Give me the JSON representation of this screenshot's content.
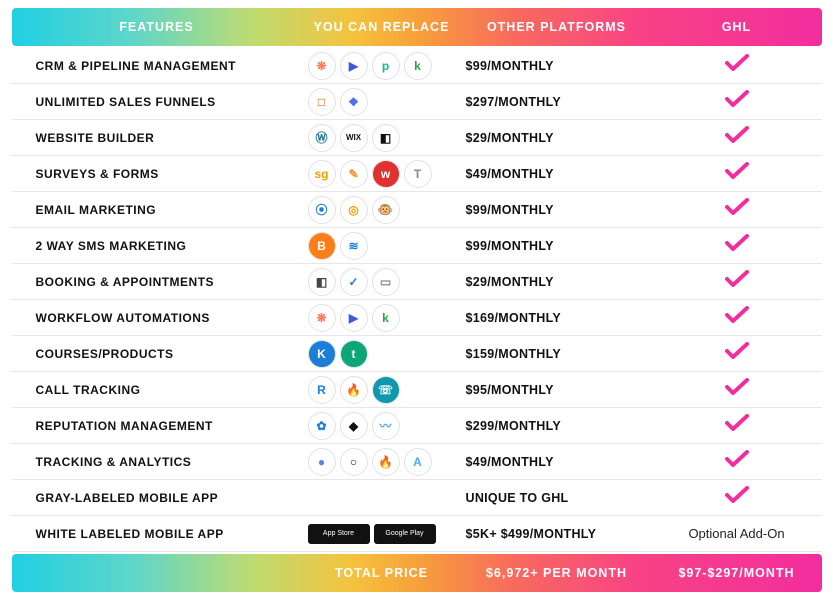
{
  "header": {
    "col1": "FEATURES",
    "col2": "YOU CAN REPLACE",
    "col3": "OTHER PLATFORMS",
    "col4": "GHL"
  },
  "footer": {
    "col1": "",
    "col2": "TOTAL PRICE",
    "col3": "$6,972+ PER MONTH",
    "col4": "$97-$297/MONTH"
  },
  "check_color": "#f22e9e",
  "rows": [
    {
      "feature": "CRM & PIPELINE MANAGEMENT",
      "price": "$99/MONTHLY",
      "ghl": "check",
      "icons": [
        {
          "text": "❋",
          "color": "#ff7a59"
        },
        {
          "text": "▶",
          "color": "#3b5bdb"
        },
        {
          "text": "p",
          "color": "#12b886"
        },
        {
          "text": "k",
          "color": "#2f9e44"
        }
      ]
    },
    {
      "feature": "UNLIMITED SALES FUNNELS",
      "price": "$297/MONTHLY",
      "ghl": "check",
      "icons": [
        {
          "text": "□",
          "color": "#d95000"
        },
        {
          "text": "❖",
          "color": "#4c6ef5"
        }
      ]
    },
    {
      "feature": "WEBSITE BUILDER",
      "price": "$29/MONTHLY",
      "ghl": "check",
      "icons": [
        {
          "text": "Ⓦ",
          "color": "#21759b"
        },
        {
          "text": "WIX",
          "color": "#111",
          "fs": "8"
        },
        {
          "text": "◧",
          "color": "#111"
        }
      ]
    },
    {
      "feature": "SURVEYS & FORMS",
      "price": "$49/MONTHLY",
      "ghl": "check",
      "icons": [
        {
          "text": "sg",
          "color": "#f59f00"
        },
        {
          "text": "✎",
          "color": "#ff922b"
        },
        {
          "text": "w",
          "color": "#fff",
          "bg": "#e03131"
        },
        {
          "text": "T",
          "color": "#888"
        }
      ]
    },
    {
      "feature": "EMAIL MARKETING",
      "price": "$99/MONTHLY",
      "ghl": "check",
      "icons": [
        {
          "text": "⦿",
          "color": "#1c7ed6"
        },
        {
          "text": "◎",
          "color": "#f59f00"
        },
        {
          "text": "🐵",
          "color": "#5c4a2e",
          "fs": "13"
        }
      ]
    },
    {
      "feature": "2 WAY SMS MARKETING",
      "price": "$99/MONTHLY",
      "ghl": "check",
      "icons": [
        {
          "text": "B",
          "color": "#fff",
          "bg": "#fd7e14"
        },
        {
          "text": "≋",
          "color": "#1c7ed6"
        }
      ]
    },
    {
      "feature": "BOOKING & APPOINTMENTS",
      "price": "$29/MONTHLY",
      "ghl": "check",
      "icons": [
        {
          "text": "◧",
          "color": "#444"
        },
        {
          "text": "✓",
          "color": "#1c7ed6"
        },
        {
          "text": "▭",
          "color": "#888"
        }
      ]
    },
    {
      "feature": "WORKFLOW AUTOMATIONS",
      "price": "$169/MONTHLY",
      "ghl": "check",
      "icons": [
        {
          "text": "❋",
          "color": "#ff7a59"
        },
        {
          "text": "▶",
          "color": "#3b5bdb"
        },
        {
          "text": "k",
          "color": "#2f9e44"
        }
      ]
    },
    {
      "feature": "COURSES/PRODUCTS",
      "price": "$159/MONTHLY",
      "ghl": "check",
      "icons": [
        {
          "text": "K",
          "color": "#fff",
          "bg": "#1c7ed6"
        },
        {
          "text": "t",
          "color": "#fff",
          "bg": "#0ca678"
        }
      ]
    },
    {
      "feature": "CALL TRACKING",
      "price": "$95/MONTHLY",
      "ghl": "check",
      "icons": [
        {
          "text": "R",
          "color": "#1c7ed6"
        },
        {
          "text": "🔥",
          "color": "#fd7e14",
          "fs": "12"
        },
        {
          "text": "☏",
          "color": "#fff",
          "bg": "#1098ad"
        }
      ]
    },
    {
      "feature": "REPUTATION MANAGEMENT",
      "price": "$299/MONTHLY",
      "ghl": "check",
      "icons": [
        {
          "text": "✿",
          "color": "#1c7ed6"
        },
        {
          "text": "◆",
          "color": "#111"
        },
        {
          "text": "〰",
          "color": "#4dabf7"
        }
      ]
    },
    {
      "feature": "TRACKING & ANALYTICS",
      "price": "$49/MONTHLY",
      "ghl": "check",
      "icons": [
        {
          "text": "●",
          "color": "#5c7cfa"
        },
        {
          "text": "○",
          "color": "#111"
        },
        {
          "text": "🔥",
          "color": "#fa5252",
          "fs": "12"
        },
        {
          "text": "A",
          "color": "#4dabf7"
        }
      ]
    },
    {
      "feature": "GRAY-LABELED MOBILE APP",
      "price": "UNIQUE TO GHL",
      "ghl": "check",
      "icons": []
    },
    {
      "feature": "WHITE LABELED MOBILE APP",
      "price": "$5K+ $499/MONTHLY",
      "ghl": "text",
      "ghl_text": "Optional Add-On",
      "badges": [
        "App Store",
        "Google Play"
      ]
    }
  ]
}
